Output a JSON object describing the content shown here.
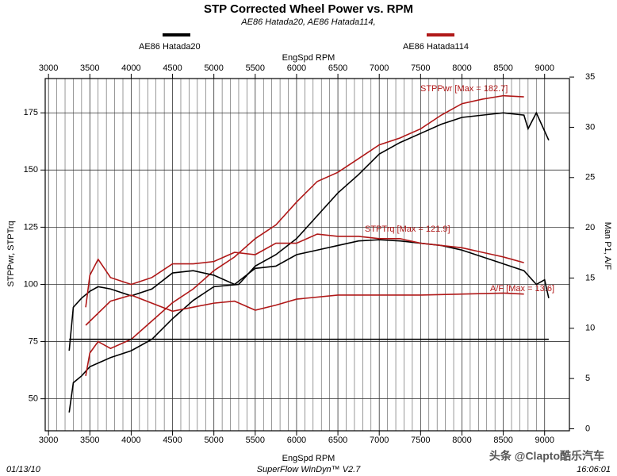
{
  "chart_data": {
    "type": "line",
    "title": "STP Corrected Wheel Power vs. RPM",
    "subtitle": "AE86 Hatada20, AE86 Hatada114,",
    "x_label": "EngSpd  RPM",
    "y_label": "STPPwr, STPTrq",
    "y2_label": "Man P1,  A/F",
    "legend": [
      {
        "name": "AE86 Hatada20",
        "color": "#000000"
      },
      {
        "name": "AE86 Hatada114",
        "color": "#b01818"
      }
    ],
    "annotations": [
      "STPPwr [Max = 182.7]",
      "STPTrq [Max = 121.9]",
      "A/F  [Max = 13.6]"
    ],
    "footer": {
      "date": "01/13/10",
      "software": "SuperFlow WinDyn™ V2.7",
      "time": "16:06:01",
      "watermark": "头条 @Clapto酷乐汽车"
    },
    "xlim": [
      2960,
      9300
    ],
    "xticks": [
      3000,
      3500,
      4000,
      4500,
      5000,
      5500,
      6000,
      6500,
      7000,
      7500,
      8000,
      8500,
      9000
    ],
    "ylim": [
      36,
      190
    ],
    "yticks": [
      50,
      75,
      100,
      125,
      150,
      175
    ],
    "y2lim": [
      -0.2,
      34.85
    ],
    "y2ticks": [
      0,
      5,
      10,
      15,
      20,
      25,
      30,
      35
    ],
    "grid": true,
    "series": [
      {
        "name": "STPPwr",
        "color": "#000000",
        "x": [
          3250,
          3300,
          3400,
          3500,
          3750,
          4000,
          4250,
          4500,
          4750,
          5000,
          5300,
          5500,
          5750,
          6000,
          6250,
          6500,
          6750,
          7000,
          7250,
          7500,
          7750,
          8000,
          8250,
          8500,
          8750,
          8800,
          8900,
          9050
        ],
        "values": [
          44,
          57,
          60,
          64,
          68,
          71,
          76,
          85,
          93,
          99,
          100,
          108,
          113,
          120,
          130,
          140,
          148,
          157,
          162,
          166,
          170,
          173,
          174,
          175,
          174,
          168,
          175,
          163
        ]
      },
      {
        "name": "STPPwr",
        "color": "#b01818",
        "x": [
          3450,
          3500,
          3600,
          3750,
          4000,
          4250,
          4500,
          4750,
          5000,
          5250,
          5500,
          5750,
          6000,
          6250,
          6500,
          6750,
          7000,
          7250,
          7500,
          7750,
          8000,
          8250,
          8500,
          8750
        ],
        "values": [
          60,
          70,
          75,
          72,
          76,
          84,
          92,
          98,
          106,
          112,
          120,
          126,
          136,
          145,
          149,
          155,
          161,
          164,
          168,
          174,
          179,
          181,
          182.5,
          182
        ]
      },
      {
        "name": "STPTrq",
        "color": "#000000",
        "x": [
          3250,
          3300,
          3400,
          3500,
          3600,
          3750,
          4000,
          4250,
          4500,
          4750,
          5000,
          5250,
          5500,
          5750,
          6000,
          6250,
          6500,
          6750,
          7000,
          7250,
          7500,
          7750,
          8000,
          8250,
          8500,
          8750,
          8900,
          9000,
          9050
        ],
        "values": [
          71,
          90,
          94,
          97,
          99,
          98,
          95,
          98,
          105,
          106,
          104,
          100,
          107,
          108,
          113,
          115,
          117,
          119,
          119.5,
          119,
          118,
          117,
          115,
          112,
          109,
          106,
          100,
          102,
          94
        ]
      },
      {
        "name": "STPTrq",
        "color": "#b01818",
        "x": [
          3450,
          3500,
          3600,
          3750,
          4000,
          4250,
          4500,
          4750,
          5000,
          5250,
          5500,
          5750,
          6000,
          6250,
          6500,
          6750,
          7000,
          7250,
          7500,
          7750,
          8000,
          8250,
          8500,
          8750
        ],
        "values": [
          90,
          104,
          111,
          103,
          100,
          103,
          109,
          109,
          110,
          114,
          113,
          118,
          118,
          122,
          121,
          121,
          120,
          120,
          118,
          117,
          116,
          114,
          112,
          109.5
        ]
      },
      {
        "name": "A/F",
        "color": "#000000",
        "axis": "y2",
        "x": [
          3250,
          5000,
          7000,
          9050
        ],
        "values": [
          8.9,
          8.9,
          8.9,
          8.9
        ]
      },
      {
        "name": "A/F",
        "color": "#b01818",
        "axis": "y2",
        "x": [
          3450,
          3750,
          4000,
          4250,
          4500,
          4750,
          5000,
          5250,
          5500,
          5750,
          6000,
          6500,
          7000,
          7500,
          8000,
          8500,
          8750
        ],
        "values": [
          10.3,
          12.7,
          13.3,
          12.5,
          11.7,
          12.1,
          12.5,
          12.7,
          11.8,
          12.3,
          12.9,
          13.3,
          13.3,
          13.3,
          13.4,
          13.5,
          13.4
        ]
      }
    ]
  }
}
